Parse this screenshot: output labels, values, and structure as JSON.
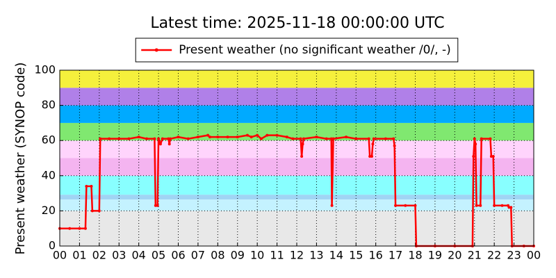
{
  "chart_data": {
    "type": "line",
    "title": "Latest time: 2025-11-18 00:00:00 UTC",
    "ylabel": "Present weather (SYNOP code)",
    "legend": "upper center",
    "grid": true,
    "xlim": [
      0,
      24
    ],
    "ylim": [
      0,
      100
    ],
    "xticks": [
      {
        "value": 0,
        "label": "00"
      },
      {
        "value": 1,
        "label": "01"
      },
      {
        "value": 2,
        "label": "02"
      },
      {
        "value": 3,
        "label": "03"
      },
      {
        "value": 4,
        "label": "04"
      },
      {
        "value": 5,
        "label": "05"
      },
      {
        "value": 6,
        "label": "06"
      },
      {
        "value": 7,
        "label": "07"
      },
      {
        "value": 8,
        "label": "08"
      },
      {
        "value": 9,
        "label": "09"
      },
      10,
      11,
      12,
      13,
      14,
      15,
      16,
      17,
      18,
      19,
      20,
      21,
      22,
      23,
      {
        "value": 24,
        "label": "00"
      }
    ],
    "yticks": [
      0,
      20,
      40,
      60,
      80,
      100
    ],
    "bands": [
      {
        "from": 0,
        "to": 20,
        "color": "#e8e8e8"
      },
      {
        "from": 20,
        "to": 26.5,
        "color": "#c4f2ff"
      },
      {
        "from": 26.5,
        "to": 29.2,
        "color": "#a0d4f4"
      },
      {
        "from": 29.2,
        "to": 40,
        "color": "#88ffff"
      },
      {
        "from": 40,
        "to": 50,
        "color": "#f4b4f0"
      },
      {
        "from": 50,
        "to": 60,
        "color": "#ffd4fc"
      },
      {
        "from": 60,
        "to": 70,
        "color": "#80e870"
      },
      {
        "from": 70,
        "to": 80,
        "color": "#00aaff"
      },
      {
        "from": 80,
        "to": 90,
        "color": "#b080e8"
      },
      {
        "from": 90,
        "to": 100,
        "color": "#f5f03c"
      }
    ],
    "x": [
      0,
      0.5,
      1,
      1.3,
      1.35,
      1.6,
      1.65,
      2.0,
      2.05,
      2.5,
      3.0,
      3.5,
      4.0,
      4.4,
      4.8,
      4.85,
      4.95,
      5.0,
      5.1,
      5.2,
      5.5,
      5.55,
      5.6,
      6.0,
      6.5,
      7.0,
      7.5,
      7.6,
      8.0,
      8.5,
      9.0,
      9.5,
      9.7,
      10.0,
      10.2,
      10.5,
      11.0,
      11.5,
      11.8,
      12.2,
      12.25,
      12.3,
      12.35,
      13.0,
      13.5,
      13.75,
      13.78,
      13.85,
      14.5,
      15.0,
      15.65,
      15.7,
      15.8,
      15.85,
      15.9,
      16.5,
      16.9,
      16.95,
      17.0,
      17.5,
      18.0,
      18.05,
      19.0,
      20.0,
      20.9,
      20.95,
      21.0,
      21.05,
      21.1,
      21.3,
      21.35,
      21.8,
      21.85,
      21.95,
      22.0,
      22.4,
      22.7,
      22.75,
      22.85,
      22.9,
      23.5,
      24.0
    ],
    "series": [
      {
        "name": "Present weather (no significant weather /0/, -)",
        "color": "#ff0000",
        "values": [
          10,
          10,
          10,
          10,
          34,
          34,
          20,
          20,
          61,
          61,
          61,
          61,
          62,
          61,
          61,
          23,
          23,
          61,
          58,
          61,
          61,
          58,
          61,
          62,
          61,
          62,
          63,
          62,
          62,
          62,
          62,
          63,
          62,
          63,
          61,
          63,
          63,
          62,
          61,
          61,
          51,
          58,
          61,
          62,
          61,
          61,
          23,
          61,
          62,
          61,
          61,
          51,
          51,
          58,
          61,
          61,
          61,
          57,
          23,
          23,
          23,
          0,
          0,
          0,
          0,
          51,
          61,
          58,
          23,
          23,
          61,
          61,
          51,
          51,
          23,
          23,
          23,
          22,
          22,
          0,
          0,
          0
        ]
      }
    ]
  }
}
